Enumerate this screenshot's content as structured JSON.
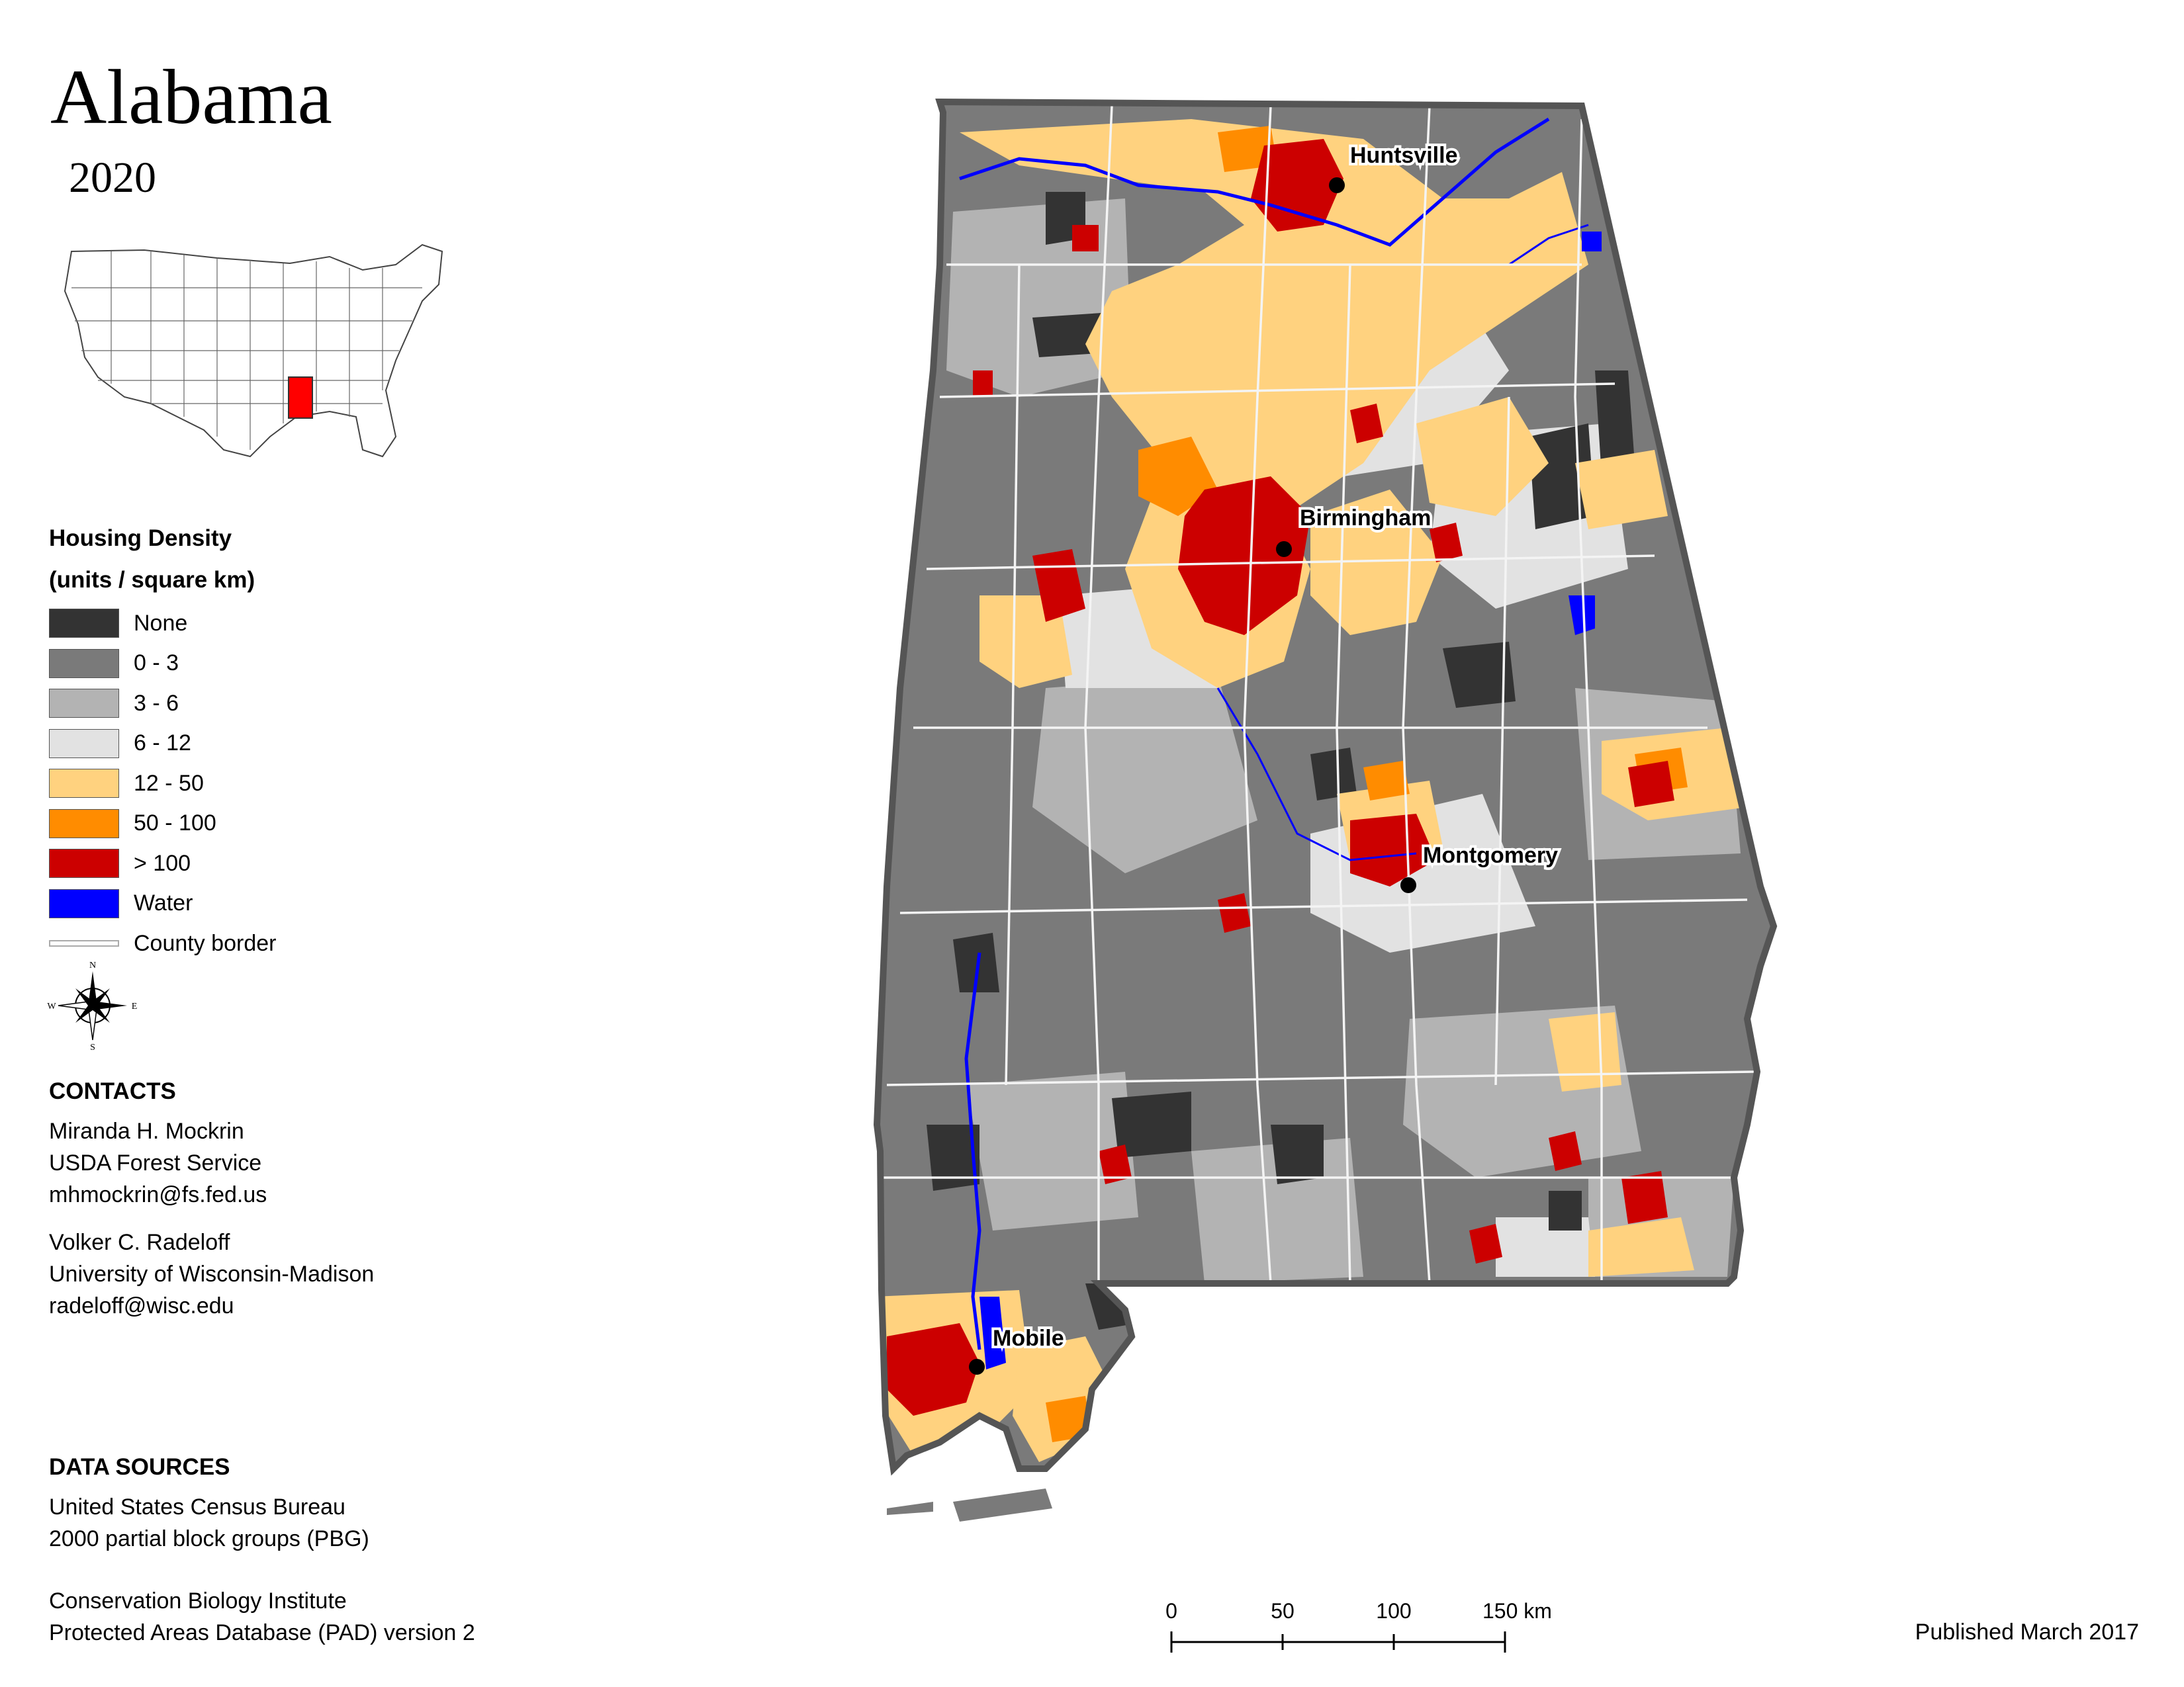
{
  "title": "Alabama",
  "year": "2020",
  "legend": {
    "title_line1": "Housing Density",
    "title_line2": "(units / square km)",
    "items": [
      {
        "label": "None",
        "color": "#333333"
      },
      {
        "label": "0 - 3",
        "color": "#7a7a7a"
      },
      {
        "label": "3 - 6",
        "color": "#b3b3b3"
      },
      {
        "label": "6 - 12",
        "color": "#e2e2e2"
      },
      {
        "label": "12 - 50",
        "color": "#ffd27f"
      },
      {
        "label": "50 - 100",
        "color": "#ff8c00"
      },
      {
        "label": "> 100",
        "color": "#cc0000"
      },
      {
        "label": "Water",
        "color": "#0000ff"
      }
    ],
    "county_border_label": "County border"
  },
  "compass": {
    "n": "N",
    "s": "S",
    "e": "E",
    "w": "W"
  },
  "contacts": {
    "heading": "CONTACTS",
    "person1": {
      "name": "Miranda H. Mockrin",
      "org": "USDA Forest Service",
      "email": "mhmockrin@fs.fed.us"
    },
    "person2": {
      "name": "Volker C. Radeloff",
      "org": "University of Wisconsin-Madison",
      "email": "radeloff@wisc.edu"
    }
  },
  "data_sources": {
    "heading": "DATA SOURCES",
    "line1": "United States Census Bureau",
    "line2": "2000 partial block groups (PBG)",
    "line3": "Conservation Biology Institute",
    "line4": "Protected Areas Database (PAD) version 2"
  },
  "cities": {
    "huntsville": "Huntsville",
    "birmingham": "Birmingham",
    "montgomery": "Montgomery",
    "mobile": "Mobile"
  },
  "scale": {
    "t0": "0",
    "t1": "50",
    "t2": "100",
    "t3": "150 km"
  },
  "published": "Published March 2017",
  "inset_highlight_color": "#ff0000"
}
